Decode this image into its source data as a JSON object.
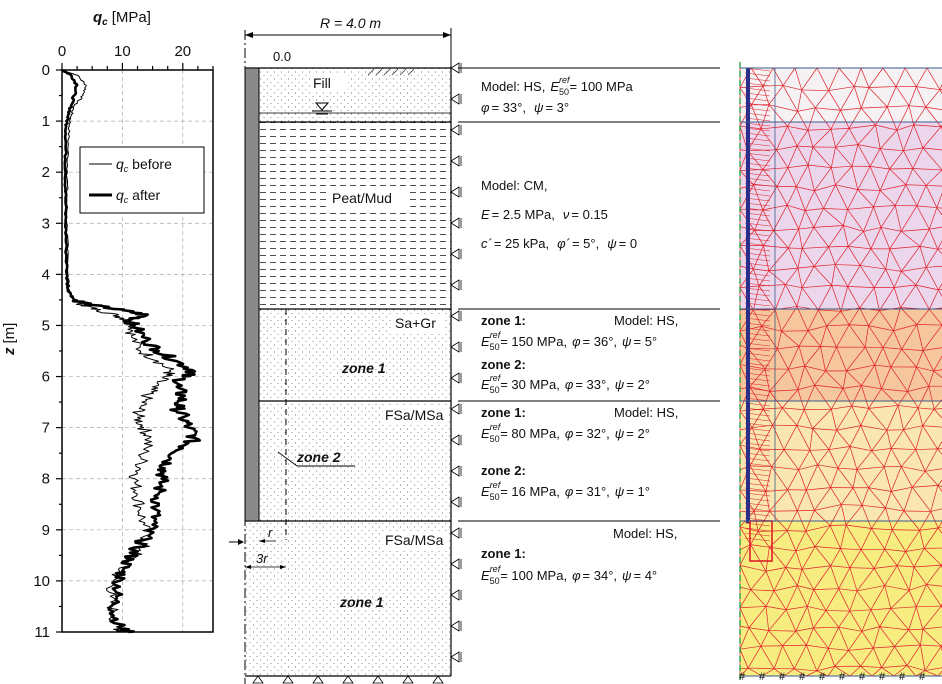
{
  "chart": {
    "x_label_symbol": "q",
    "x_label_sub": "c",
    "x_label_unit": "[MPa]",
    "x_ticks": [
      "0",
      "10",
      "20"
    ],
    "y_label_symbol": "z",
    "y_label_unit": "[m]",
    "y_ticks": [
      "0",
      "1",
      "2",
      "3",
      "4",
      "5",
      "6",
      "7",
      "8",
      "9",
      "10",
      "11"
    ],
    "legend": [
      "q_c before",
      "q_c after"
    ],
    "legend_sym": "q",
    "legend_sub": "c",
    "legend_before": " before",
    "legend_after": " after"
  },
  "chart_data": {
    "type": "line",
    "xlabel": "q_c [MPa]",
    "ylabel": "z [m]",
    "xlim": [
      0,
      25
    ],
    "ylim": [
      11,
      0
    ],
    "x_axis_position": "top",
    "grid": true,
    "legend_position": "top-left",
    "series": [
      {
        "name": "q_c before",
        "line_width": "thin",
        "points": [
          [
            0.0,
            0.0
          ],
          [
            2.5,
            0.1
          ],
          [
            4.0,
            0.3
          ],
          [
            3.5,
            0.5
          ],
          [
            2.0,
            0.7
          ],
          [
            1.5,
            0.9
          ],
          [
            1.2,
            1.1
          ],
          [
            1.0,
            1.5
          ],
          [
            0.9,
            2.0
          ],
          [
            0.8,
            2.5
          ],
          [
            0.8,
            3.0
          ],
          [
            0.9,
            3.5
          ],
          [
            1.0,
            4.0
          ],
          [
            1.2,
            4.3
          ],
          [
            2.0,
            4.5
          ],
          [
            3.5,
            4.6
          ],
          [
            6.0,
            4.7
          ],
          [
            9.0,
            4.8
          ],
          [
            11.0,
            4.9
          ],
          [
            12.0,
            5.0
          ],
          [
            11.5,
            5.2
          ],
          [
            13.0,
            5.5
          ],
          [
            16.0,
            5.7
          ],
          [
            18.0,
            5.9
          ],
          [
            17.0,
            6.0
          ],
          [
            15.0,
            6.2
          ],
          [
            14.0,
            6.4
          ],
          [
            13.0,
            6.6
          ],
          [
            12.5,
            6.8
          ],
          [
            13.5,
            7.0
          ],
          [
            14.5,
            7.2
          ],
          [
            13.5,
            7.5
          ],
          [
            13.0,
            7.8
          ],
          [
            12.0,
            8.0
          ],
          [
            12.5,
            8.3
          ],
          [
            13.0,
            8.6
          ],
          [
            13.5,
            8.9
          ],
          [
            14.0,
            9.2
          ],
          [
            13.0,
            9.4
          ],
          [
            11.0,
            9.6
          ],
          [
            9.5,
            9.8
          ],
          [
            8.5,
            10.0
          ],
          [
            8.0,
            10.3
          ],
          [
            8.5,
            10.6
          ],
          [
            9.0,
            10.9
          ],
          [
            10.0,
            11.0
          ]
        ]
      },
      {
        "name": "q_c after",
        "line_width": "thick",
        "points": [
          [
            0.0,
            0.0
          ],
          [
            1.5,
            0.1
          ],
          [
            2.5,
            0.3
          ],
          [
            2.0,
            0.5
          ],
          [
            1.5,
            0.7
          ],
          [
            1.0,
            0.9
          ],
          [
            0.7,
            1.1
          ],
          [
            0.6,
            1.5
          ],
          [
            0.6,
            2.0
          ],
          [
            0.6,
            2.5
          ],
          [
            0.6,
            3.0
          ],
          [
            0.7,
            3.5
          ],
          [
            0.8,
            4.0
          ],
          [
            1.0,
            4.3
          ],
          [
            2.0,
            4.5
          ],
          [
            5.0,
            4.6
          ],
          [
            10.0,
            4.7
          ],
          [
            14.0,
            4.8
          ],
          [
            11.0,
            4.9
          ],
          [
            12.0,
            5.0
          ],
          [
            14.0,
            5.3
          ],
          [
            16.0,
            5.5
          ],
          [
            19.0,
            5.7
          ],
          [
            22.0,
            5.9
          ],
          [
            20.0,
            6.0
          ],
          [
            19.0,
            6.2
          ],
          [
            20.0,
            6.4
          ],
          [
            19.0,
            6.6
          ],
          [
            20.0,
            6.8
          ],
          [
            21.0,
            7.0
          ],
          [
            22.0,
            7.2
          ],
          [
            20.0,
            7.4
          ],
          [
            18.0,
            7.6
          ],
          [
            17.0,
            7.8
          ],
          [
            16.5,
            8.0
          ],
          [
            16.0,
            8.3
          ],
          [
            15.5,
            8.6
          ],
          [
            15.0,
            8.9
          ],
          [
            13.5,
            9.2
          ],
          [
            12.0,
            9.4
          ],
          [
            11.0,
            9.6
          ],
          [
            10.0,
            9.8
          ],
          [
            9.5,
            10.0
          ],
          [
            9.0,
            10.3
          ],
          [
            8.5,
            10.6
          ],
          [
            9.5,
            10.9
          ],
          [
            11.0,
            11.0
          ]
        ]
      }
    ]
  },
  "model": {
    "radius_label": "R = 4.0 m",
    "zero_label": "0.0",
    "r_label": "r",
    "three_r_label": "3r",
    "layers": [
      {
        "name": "Fill"
      },
      {
        "name": "Peat/Mud"
      },
      {
        "name": "Sa+Gr",
        "zone": "zone 1"
      },
      {
        "name": "FSa/MSa",
        "zone": "zone 2"
      },
      {
        "name": "FSa/MSa",
        "zone": "zone 1"
      }
    ]
  },
  "params": {
    "fill_l1": "Model: HS,",
    "fill_l1b": "= 100 MPa",
    "fill_l2": "= 33°,",
    "fill_l2b": "= 3°",
    "peat_l1": "Model: CM,",
    "peat_l2": "= 2.5 MPa,",
    "peat_l2b": "= 0.15",
    "peat_l3": "= 25 kPa,",
    "peat_l3b": "= 5°,",
    "peat_l3c": "= 0",
    "sagr_z1": "zone 1:",
    "sagr_model": "Model: HS,",
    "sagr_l1": "= 150 MPa,",
    "sagr_l1b": "= 36°,",
    "sagr_l1c": "= 5°",
    "sagr_z2": "zone 2:",
    "sagr_l2": "= 30 MPa,",
    "sagr_l2b": "= 33°,",
    "sagr_l2c": "= 2°",
    "fsa1_z1": "zone 1:",
    "fsa1_model": "Model: HS,",
    "fsa1_l1": "= 80 MPa,",
    "fsa1_l1b": "= 32°,",
    "fsa1_l1c": "= 2°",
    "fsa1_z2": "zone 2:",
    "fsa1_l2": "= 16 MPa,",
    "fsa1_l2b": "= 31°,",
    "fsa1_l2c": "= 1°",
    "fsa2_model": "Model: HS,",
    "fsa2_z1": "zone 1:",
    "fsa2_l1": "= 100 MPa,",
    "fsa2_l1b": "= 34°,",
    "fsa2_l1c": "= 4°",
    "sym_E50": "E",
    "sub_50": "50",
    "sup_ref": "ref",
    "sym_phi": "φ",
    "sym_psi": "ψ",
    "sym_E": "E",
    "sym_nu": "ν",
    "sym_c": "c´",
    "sym_phi_p": "φ´"
  },
  "colors": {
    "fill_layer": "#f6f1f3",
    "peat_layer": "#ecd6ec",
    "sagr_layer": "#f6c69c",
    "fsa1_layer": "#f9e6b0",
    "fsa2_layer": "#f7ec80",
    "mesh_line": "#e0202a",
    "mesh_edge": "#3a5a8a",
    "mesh_dense": "#2b2f8a",
    "boundary": "#2aa24a"
  }
}
